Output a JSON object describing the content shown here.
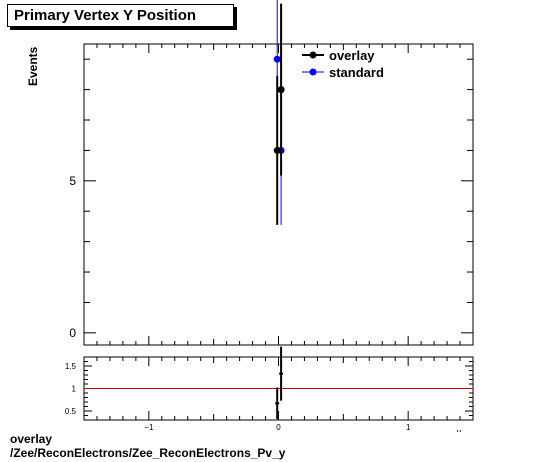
{
  "chart_data": [
    {
      "type": "scatter",
      "title": "Primary Vertex Y Position",
      "ylabel": "Events",
      "xlim": [
        -1.5,
        1.5
      ],
      "ylim": [
        -0.4,
        9.5
      ],
      "yticks": [
        0,
        5
      ],
      "grid": false,
      "legend": "top-right",
      "series": [
        {
          "name": "overlay",
          "color": "#000000",
          "points": [
            {
              "x": -0.01,
              "y": 6,
              "yerr": [
                2.45,
                2.45
              ]
            },
            {
              "x": 0.02,
              "y": 8,
              "yerr": [
                2.83,
                2.83
              ]
            }
          ]
        },
        {
          "name": "standard",
          "color": "#0000ff",
          "points": [
            {
              "x": -0.01,
              "y": 9,
              "yerr": [
                3.0,
                3.0
              ]
            },
            {
              "x": 0.02,
              "y": 6,
              "yerr": [
                2.45,
                2.45
              ]
            }
          ]
        }
      ]
    },
    {
      "type": "scatter",
      "title": "",
      "xlabel": "y",
      "xlim": [
        -1.5,
        1.5
      ],
      "ylim": [
        0.3,
        1.7
      ],
      "xticks": [
        -1,
        0,
        1
      ],
      "yticks": [
        0.5,
        1,
        1.5
      ],
      "reference_line": {
        "y": 1,
        "color": "#cc0000"
      },
      "points": [
        {
          "x": -0.01,
          "y": 0.67,
          "yerr": [
            0.35,
            0.35
          ]
        },
        {
          "x": 0.02,
          "y": 1.33,
          "yerr": [
            0.6,
            0.6
          ]
        }
      ]
    }
  ],
  "labels": {
    "title": "Primary Vertex Y Position",
    "ylabel": "Events",
    "xlabel": "y",
    "footer_line1": "overlay",
    "footer_line2": "/Zee/ReconElectrons/Zee_ReconElectrons_Pv_y"
  }
}
